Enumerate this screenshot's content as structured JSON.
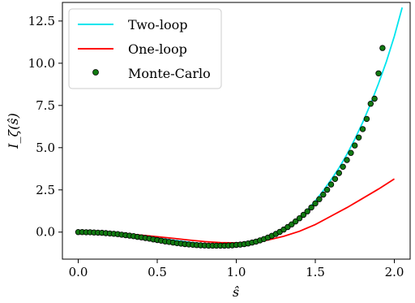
{
  "chart_data": {
    "type": "line",
    "xlabel": "ŝ",
    "ylabel": "I_ζ(ŝ)",
    "xlim": [
      -0.1,
      2.1
    ],
    "ylim": [
      -1.6,
      13.6
    ],
    "x_ticks": [
      0.0,
      0.5,
      1.0,
      1.5,
      2.0
    ],
    "x_tick_labels": [
      "0.0",
      "0.5",
      "1.0",
      "1.5",
      "2.0"
    ],
    "y_ticks": [
      0.0,
      2.5,
      5.0,
      7.5,
      10.0,
      12.5
    ],
    "y_tick_labels": [
      "0.0",
      "2.5",
      "5.0",
      "7.5",
      "10.0",
      "12.5"
    ],
    "legend_position": "top-left",
    "grid": false,
    "series": [
      {
        "name": "Two-loop",
        "kind": "line",
        "color": "#00e5ee",
        "x": [
          0.0,
          0.1,
          0.2,
          0.3,
          0.4,
          0.5,
          0.6,
          0.7,
          0.8,
          0.9,
          1.0,
          1.1,
          1.2,
          1.3,
          1.35,
          1.4,
          1.45,
          1.5,
          1.55,
          1.6,
          1.65,
          1.7,
          1.75,
          1.8,
          1.85,
          1.9,
          1.95,
          2.0,
          2.05
        ],
        "y": [
          0.0,
          -0.01,
          -0.05,
          -0.12,
          -0.22,
          -0.35,
          -0.48,
          -0.6,
          -0.7,
          -0.76,
          -0.76,
          -0.62,
          -0.36,
          0.05,
          0.4,
          0.82,
          1.3,
          1.85,
          2.45,
          3.1,
          3.8,
          4.6,
          5.5,
          6.5,
          7.6,
          8.8,
          10.1,
          11.6,
          13.3
        ]
      },
      {
        "name": "One-loop",
        "kind": "line",
        "color": "#ff0000",
        "x": [
          0.0,
          0.1,
          0.2,
          0.3,
          0.4,
          0.5,
          0.6,
          0.7,
          0.8,
          0.9,
          1.0,
          1.1,
          1.2,
          1.3,
          1.4,
          1.5,
          1.6,
          1.7,
          1.8,
          1.9,
          2.0
        ],
        "y": [
          0.0,
          -0.01,
          -0.04,
          -0.1,
          -0.18,
          -0.27,
          -0.37,
          -0.47,
          -0.56,
          -0.62,
          -0.64,
          -0.6,
          -0.47,
          -0.25,
          0.05,
          0.45,
          0.95,
          1.45,
          2.0,
          2.55,
          3.15
        ]
      },
      {
        "name": "Monte-Carlo",
        "kind": "scatter",
        "color": "#117a11",
        "edge_color": "#000000",
        "x": [
          0.0,
          0.025,
          0.05,
          0.075,
          0.1,
          0.125,
          0.15,
          0.175,
          0.2,
          0.225,
          0.25,
          0.275,
          0.3,
          0.325,
          0.35,
          0.375,
          0.4,
          0.425,
          0.45,
          0.475,
          0.5,
          0.525,
          0.55,
          0.575,
          0.6,
          0.625,
          0.65,
          0.675,
          0.7,
          0.725,
          0.75,
          0.775,
          0.8,
          0.825,
          0.85,
          0.875,
          0.9,
          0.925,
          0.95,
          0.975,
          1.0,
          1.025,
          1.05,
          1.075,
          1.1,
          1.125,
          1.15,
          1.175,
          1.2,
          1.225,
          1.25,
          1.275,
          1.3,
          1.325,
          1.35,
          1.375,
          1.4,
          1.425,
          1.45,
          1.475,
          1.5,
          1.525,
          1.55,
          1.575,
          1.6,
          1.625,
          1.65,
          1.675,
          1.7,
          1.725,
          1.75,
          1.775,
          1.8,
          1.825,
          1.85,
          1.875,
          1.9,
          1.925
        ],
        "y": [
          0.0,
          0.0,
          -0.01,
          -0.01,
          -0.02,
          -0.03,
          -0.04,
          -0.06,
          -0.08,
          -0.1,
          -0.12,
          -0.15,
          -0.18,
          -0.21,
          -0.24,
          -0.28,
          -0.31,
          -0.35,
          -0.39,
          -0.43,
          -0.47,
          -0.51,
          -0.55,
          -0.58,
          -0.62,
          -0.65,
          -0.68,
          -0.71,
          -0.73,
          -0.75,
          -0.77,
          -0.78,
          -0.79,
          -0.8,
          -0.8,
          -0.8,
          -0.8,
          -0.8,
          -0.79,
          -0.78,
          -0.76,
          -0.74,
          -0.71,
          -0.67,
          -0.62,
          -0.56,
          -0.49,
          -0.41,
          -0.32,
          -0.22,
          -0.11,
          0.01,
          0.15,
          0.3,
          0.46,
          0.63,
          0.82,
          1.02,
          1.23,
          1.46,
          1.7,
          1.95,
          2.22,
          2.51,
          2.82,
          3.15,
          3.5,
          3.87,
          4.27,
          4.69,
          5.13,
          5.6,
          6.1,
          6.7,
          7.6,
          7.9,
          9.4,
          10.9
        ]
      }
    ]
  }
}
